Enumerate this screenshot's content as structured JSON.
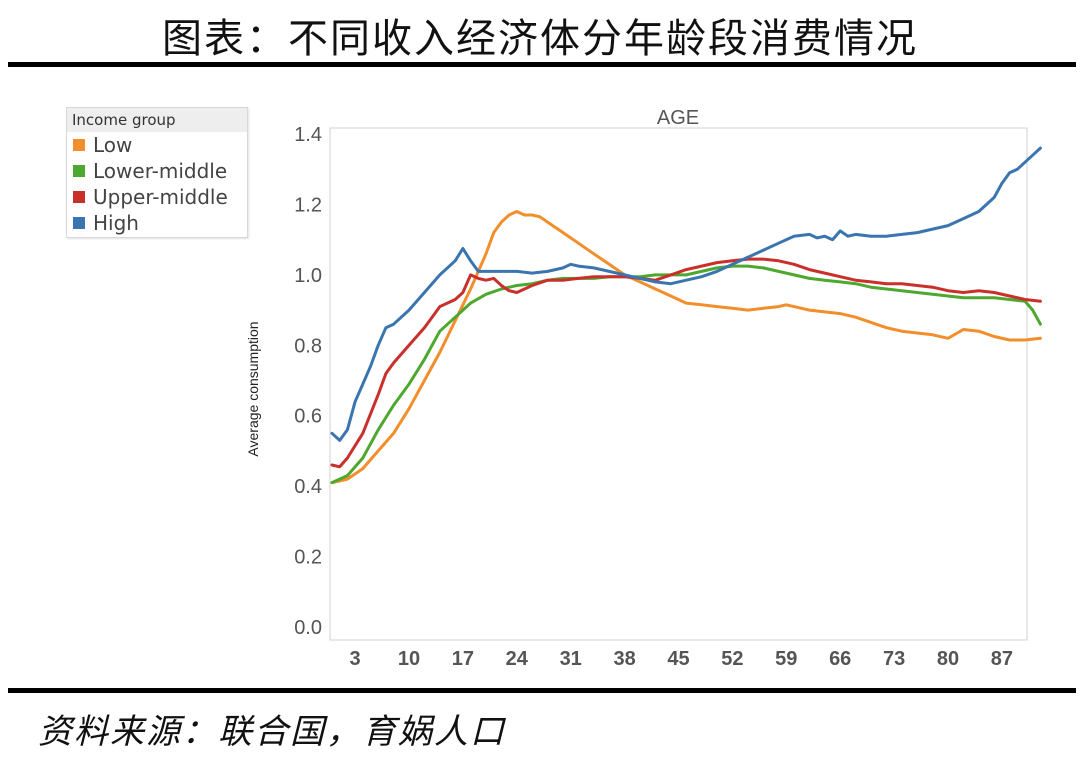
{
  "page": {
    "title": "图表：不同收入经济体分年龄段消费情况",
    "source": "资料来源：联合国，育娲人口"
  },
  "legend": {
    "title": "Income group",
    "items": [
      {
        "label": "Low",
        "color": "#f28e2b"
      },
      {
        "label": "Lower-middle",
        "color": "#4ea72e"
      },
      {
        "label": "Upper-middle",
        "color": "#c9302c"
      },
      {
        "label": "High",
        "color": "#3a75b0"
      }
    ]
  },
  "chart_data": {
    "type": "line",
    "title": "AGE",
    "ylabel": "Average consumption",
    "xlabel": "",
    "xlim": [
      0,
      90
    ],
    "ylim": [
      0,
      1.4
    ],
    "x_ticks": [
      3,
      10,
      17,
      24,
      31,
      38,
      45,
      52,
      59,
      66,
      73,
      80,
      87
    ],
    "y_ticks": [
      0.0,
      0.2,
      0.4,
      0.6,
      0.8,
      1.0,
      1.2,
      1.4
    ],
    "y_tick_labels": [
      "0.0",
      "0.2",
      "0.4",
      "0.6",
      "0.8",
      "1.0",
      "1.2",
      "1.4"
    ],
    "legend_position": "top-left (outside plot)",
    "grid": false,
    "series": [
      {
        "name": "Low",
        "color": "#f28e2b",
        "points": [
          [
            0,
            0.41
          ],
          [
            2,
            0.42
          ],
          [
            4,
            0.45
          ],
          [
            6,
            0.5
          ],
          [
            8,
            0.55
          ],
          [
            10,
            0.62
          ],
          [
            12,
            0.7
          ],
          [
            14,
            0.78
          ],
          [
            16,
            0.87
          ],
          [
            18,
            0.96
          ],
          [
            20,
            1.06
          ],
          [
            21,
            1.12
          ],
          [
            22,
            1.15
          ],
          [
            23,
            1.17
          ],
          [
            24,
            1.18
          ],
          [
            25,
            1.17
          ],
          [
            26,
            1.17
          ],
          [
            27,
            1.165
          ],
          [
            28,
            1.15
          ],
          [
            30,
            1.12
          ],
          [
            32,
            1.09
          ],
          [
            34,
            1.06
          ],
          [
            36,
            1.03
          ],
          [
            38,
            1.0
          ],
          [
            40,
            0.98
          ],
          [
            42,
            0.96
          ],
          [
            44,
            0.94
          ],
          [
            46,
            0.92
          ],
          [
            48,
            0.915
          ],
          [
            50,
            0.91
          ],
          [
            52,
            0.905
          ],
          [
            54,
            0.9
          ],
          [
            56,
            0.905
          ],
          [
            58,
            0.91
          ],
          [
            59,
            0.915
          ],
          [
            60,
            0.91
          ],
          [
            62,
            0.9
          ],
          [
            64,
            0.895
          ],
          [
            66,
            0.89
          ],
          [
            68,
            0.88
          ],
          [
            70,
            0.865
          ],
          [
            72,
            0.85
          ],
          [
            74,
            0.84
          ],
          [
            76,
            0.835
          ],
          [
            78,
            0.83
          ],
          [
            80,
            0.82
          ],
          [
            82,
            0.845
          ],
          [
            84,
            0.84
          ],
          [
            86,
            0.825
          ],
          [
            88,
            0.815
          ],
          [
            90,
            0.815
          ],
          [
            92,
            0.82
          ]
        ]
      },
      {
        "name": "Lower-middle",
        "color": "#4ea72e",
        "points": [
          [
            0,
            0.41
          ],
          [
            2,
            0.43
          ],
          [
            4,
            0.48
          ],
          [
            6,
            0.56
          ],
          [
            8,
            0.63
          ],
          [
            10,
            0.69
          ],
          [
            12,
            0.76
          ],
          [
            14,
            0.84
          ],
          [
            16,
            0.88
          ],
          [
            18,
            0.92
          ],
          [
            20,
            0.945
          ],
          [
            22,
            0.96
          ],
          [
            24,
            0.97
          ],
          [
            26,
            0.975
          ],
          [
            28,
            0.985
          ],
          [
            30,
            0.99
          ],
          [
            32,
            0.99
          ],
          [
            34,
            0.99
          ],
          [
            36,
            0.995
          ],
          [
            38,
            0.995
          ],
          [
            40,
            0.995
          ],
          [
            42,
            1.0
          ],
          [
            44,
            1.0
          ],
          [
            46,
            1.0
          ],
          [
            48,
            1.01
          ],
          [
            50,
            1.02
          ],
          [
            52,
            1.025
          ],
          [
            54,
            1.025
          ],
          [
            56,
            1.02
          ],
          [
            58,
            1.01
          ],
          [
            60,
            1.0
          ],
          [
            62,
            0.99
          ],
          [
            64,
            0.985
          ],
          [
            66,
            0.98
          ],
          [
            68,
            0.975
          ],
          [
            70,
            0.965
          ],
          [
            72,
            0.96
          ],
          [
            74,
            0.955
          ],
          [
            76,
            0.95
          ],
          [
            78,
            0.945
          ],
          [
            80,
            0.94
          ],
          [
            82,
            0.935
          ],
          [
            84,
            0.935
          ],
          [
            86,
            0.935
          ],
          [
            88,
            0.93
          ],
          [
            90,
            0.925
          ],
          [
            91,
            0.9
          ],
          [
            92,
            0.86
          ]
        ]
      },
      {
        "name": "Upper-middle",
        "color": "#c9302c",
        "points": [
          [
            0,
            0.46
          ],
          [
            1,
            0.455
          ],
          [
            2,
            0.48
          ],
          [
            4,
            0.55
          ],
          [
            6,
            0.66
          ],
          [
            7,
            0.72
          ],
          [
            8,
            0.75
          ],
          [
            10,
            0.8
          ],
          [
            12,
            0.85
          ],
          [
            13,
            0.88
          ],
          [
            14,
            0.91
          ],
          [
            16,
            0.93
          ],
          [
            17,
            0.95
          ],
          [
            18,
            1.0
          ],
          [
            19,
            0.99
          ],
          [
            20,
            0.985
          ],
          [
            21,
            0.99
          ],
          [
            22,
            0.97
          ],
          [
            23,
            0.955
          ],
          [
            24,
            0.95
          ],
          [
            26,
            0.97
          ],
          [
            28,
            0.985
          ],
          [
            30,
            0.985
          ],
          [
            32,
            0.99
          ],
          [
            34,
            0.995
          ],
          [
            36,
            0.995
          ],
          [
            38,
            0.995
          ],
          [
            40,
            0.99
          ],
          [
            42,
            0.985
          ],
          [
            44,
            1.0
          ],
          [
            46,
            1.015
          ],
          [
            48,
            1.025
          ],
          [
            50,
            1.035
          ],
          [
            52,
            1.04
          ],
          [
            54,
            1.045
          ],
          [
            56,
            1.045
          ],
          [
            58,
            1.04
          ],
          [
            60,
            1.03
          ],
          [
            62,
            1.015
          ],
          [
            64,
            1.005
          ],
          [
            66,
            0.995
          ],
          [
            68,
            0.985
          ],
          [
            70,
            0.98
          ],
          [
            72,
            0.975
          ],
          [
            74,
            0.975
          ],
          [
            76,
            0.97
          ],
          [
            78,
            0.965
          ],
          [
            80,
            0.955
          ],
          [
            82,
            0.95
          ],
          [
            84,
            0.955
          ],
          [
            86,
            0.95
          ],
          [
            88,
            0.94
          ],
          [
            90,
            0.93
          ],
          [
            92,
            0.925
          ]
        ]
      },
      {
        "name": "High",
        "color": "#3a75b0",
        "points": [
          [
            0,
            0.55
          ],
          [
            1,
            0.53
          ],
          [
            2,
            0.56
          ],
          [
            3,
            0.64
          ],
          [
            4,
            0.69
          ],
          [
            5,
            0.74
          ],
          [
            6,
            0.8
          ],
          [
            7,
            0.85
          ],
          [
            8,
            0.86
          ],
          [
            10,
            0.9
          ],
          [
            12,
            0.95
          ],
          [
            14,
            1.0
          ],
          [
            16,
            1.04
          ],
          [
            17,
            1.075
          ],
          [
            18,
            1.04
          ],
          [
            19,
            1.01
          ],
          [
            20,
            1.01
          ],
          [
            22,
            1.01
          ],
          [
            24,
            1.01
          ],
          [
            26,
            1.005
          ],
          [
            28,
            1.01
          ],
          [
            30,
            1.02
          ],
          [
            31,
            1.03
          ],
          [
            32,
            1.025
          ],
          [
            34,
            1.02
          ],
          [
            36,
            1.01
          ],
          [
            38,
            1.0
          ],
          [
            40,
            0.99
          ],
          [
            42,
            0.98
          ],
          [
            44,
            0.975
          ],
          [
            46,
            0.985
          ],
          [
            48,
            0.995
          ],
          [
            50,
            1.01
          ],
          [
            52,
            1.03
          ],
          [
            54,
            1.05
          ],
          [
            56,
            1.07
          ],
          [
            58,
            1.09
          ],
          [
            60,
            1.11
          ],
          [
            62,
            1.115
          ],
          [
            63,
            1.105
          ],
          [
            64,
            1.11
          ],
          [
            65,
            1.1
          ],
          [
            66,
            1.125
          ],
          [
            67,
            1.11
          ],
          [
            68,
            1.115
          ],
          [
            70,
            1.11
          ],
          [
            72,
            1.11
          ],
          [
            74,
            1.115
          ],
          [
            76,
            1.12
          ],
          [
            78,
            1.13
          ],
          [
            80,
            1.14
          ],
          [
            82,
            1.16
          ],
          [
            84,
            1.18
          ],
          [
            86,
            1.22
          ],
          [
            87,
            1.26
          ],
          [
            88,
            1.29
          ],
          [
            89,
            1.3
          ],
          [
            90,
            1.32
          ],
          [
            91,
            1.34
          ],
          [
            92,
            1.36
          ]
        ]
      }
    ]
  }
}
